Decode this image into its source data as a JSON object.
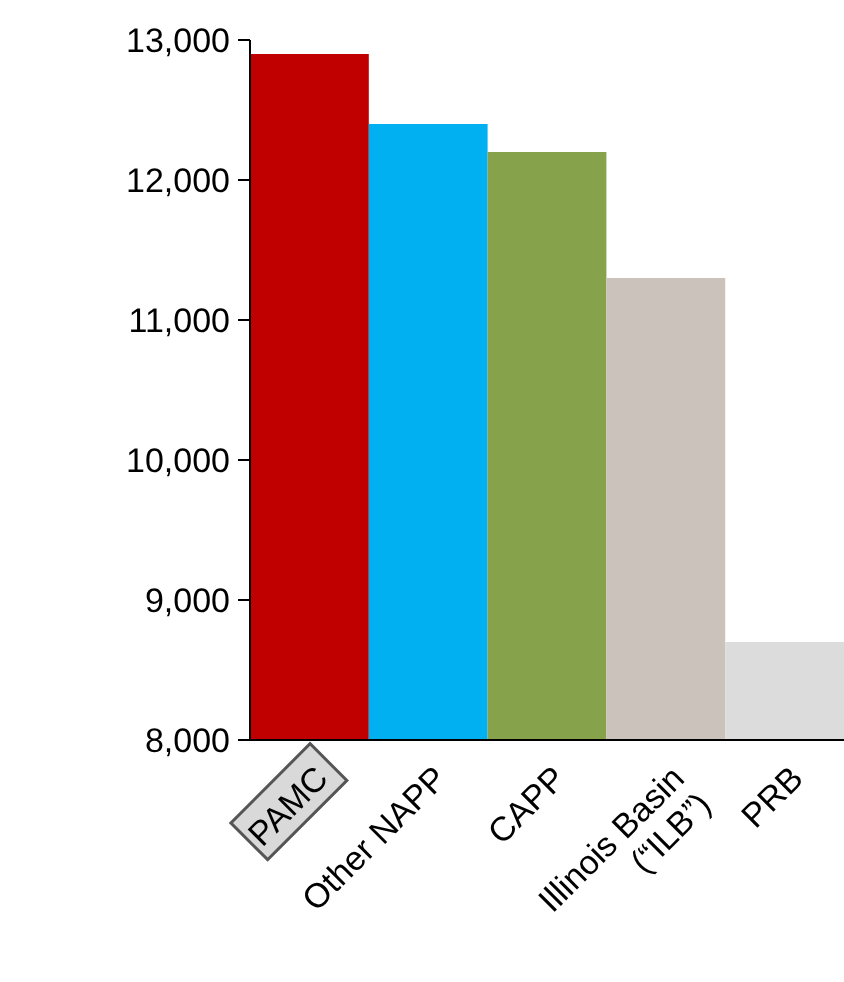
{
  "chart_data": {
    "type": "bar",
    "categories": [
      "PAMC",
      "Other NAPP",
      "CAPP",
      "Illinois Basin\n(“ILB”)",
      "PRB"
    ],
    "values": [
      12900,
      12400,
      12200,
      11300,
      8700
    ],
    "colors": [
      "#c00000",
      "#00b0f0",
      "#86a34b",
      "#cbc2bc",
      "#dcdcdc"
    ],
    "ylim": [
      8000,
      13000
    ],
    "yticks": [
      {
        "value": 8000,
        "label": "8,000"
      },
      {
        "value": 9000,
        "label": "9,000"
      },
      {
        "value": 10000,
        "label": "10,000"
      },
      {
        "value": 11000,
        "label": "11,000"
      },
      {
        "value": 12000,
        "label": "12,000"
      },
      {
        "value": 13000,
        "label": "13,000"
      }
    ],
    "grid": false
  }
}
